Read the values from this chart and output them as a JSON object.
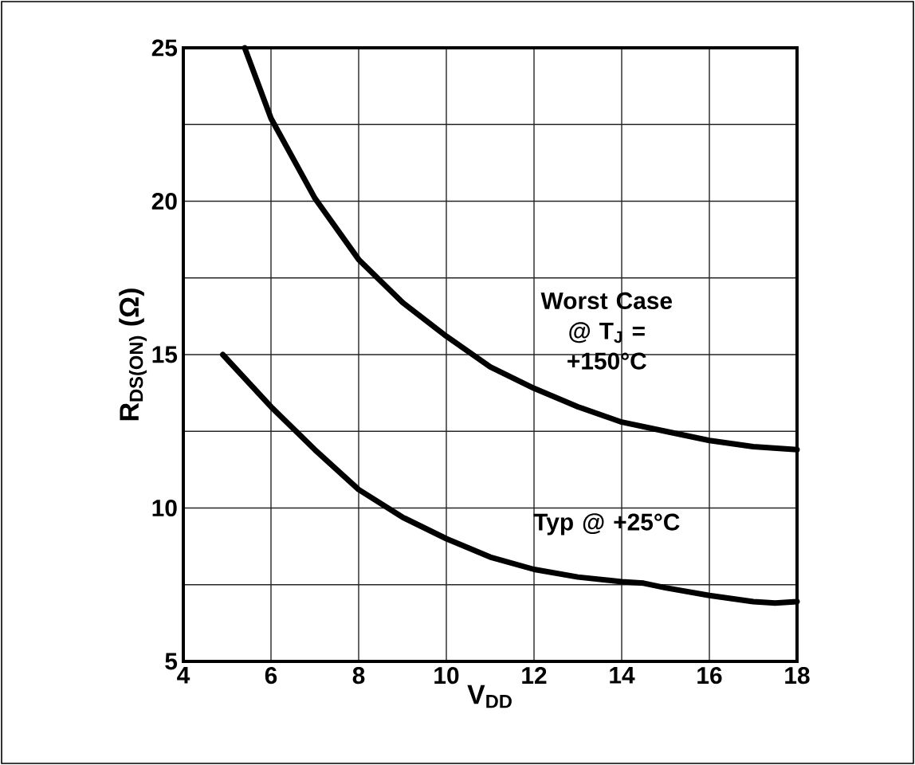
{
  "chart_data": {
    "type": "line",
    "xlabel": "V$_{DD}$",
    "ylabel": "R$_{DS(ON)}$ (Ω)",
    "xlim": [
      4,
      18
    ],
    "xticks": [
      4,
      6,
      8,
      10,
      12,
      14,
      16,
      18
    ],
    "ylim": [
      5,
      25
    ],
    "yticks": [
      5,
      {
        "value": 7.5,
        "label": null
      },
      10,
      {
        "value": 12.5,
        "label": null
      },
      15,
      {
        "value": 17.5,
        "label": null
      },
      20,
      {
        "value": 22.5,
        "label": null
      },
      25
    ],
    "grid": true,
    "line_style": "solid",
    "series": [
      {
        "name": "Worst Case @ T$_{J}$ = +150°C",
        "color": "#000000",
        "x": [
          5.4,
          6,
          7,
          8,
          9,
          10,
          11,
          12,
          13,
          14,
          15,
          16,
          17,
          18
        ],
        "values": [
          25,
          22.7,
          20.1,
          18.1,
          16.7,
          15.6,
          14.6,
          13.9,
          13.3,
          12.8,
          12.5,
          12.2,
          12.0,
          11.9
        ]
      },
      {
        "name": "Typ @ +25°C",
        "color": "#000000",
        "x": [
          4.9,
          6,
          7,
          8,
          9,
          10,
          11,
          12,
          13,
          14,
          14.5,
          15,
          16,
          17,
          17.5,
          18
        ],
        "values": [
          15,
          13.3,
          11.9,
          10.6,
          9.7,
          9.0,
          8.4,
          8.0,
          7.75,
          7.6,
          7.55,
          7.4,
          7.15,
          6.95,
          6.9,
          6.95
        ]
      }
    ]
  }
}
